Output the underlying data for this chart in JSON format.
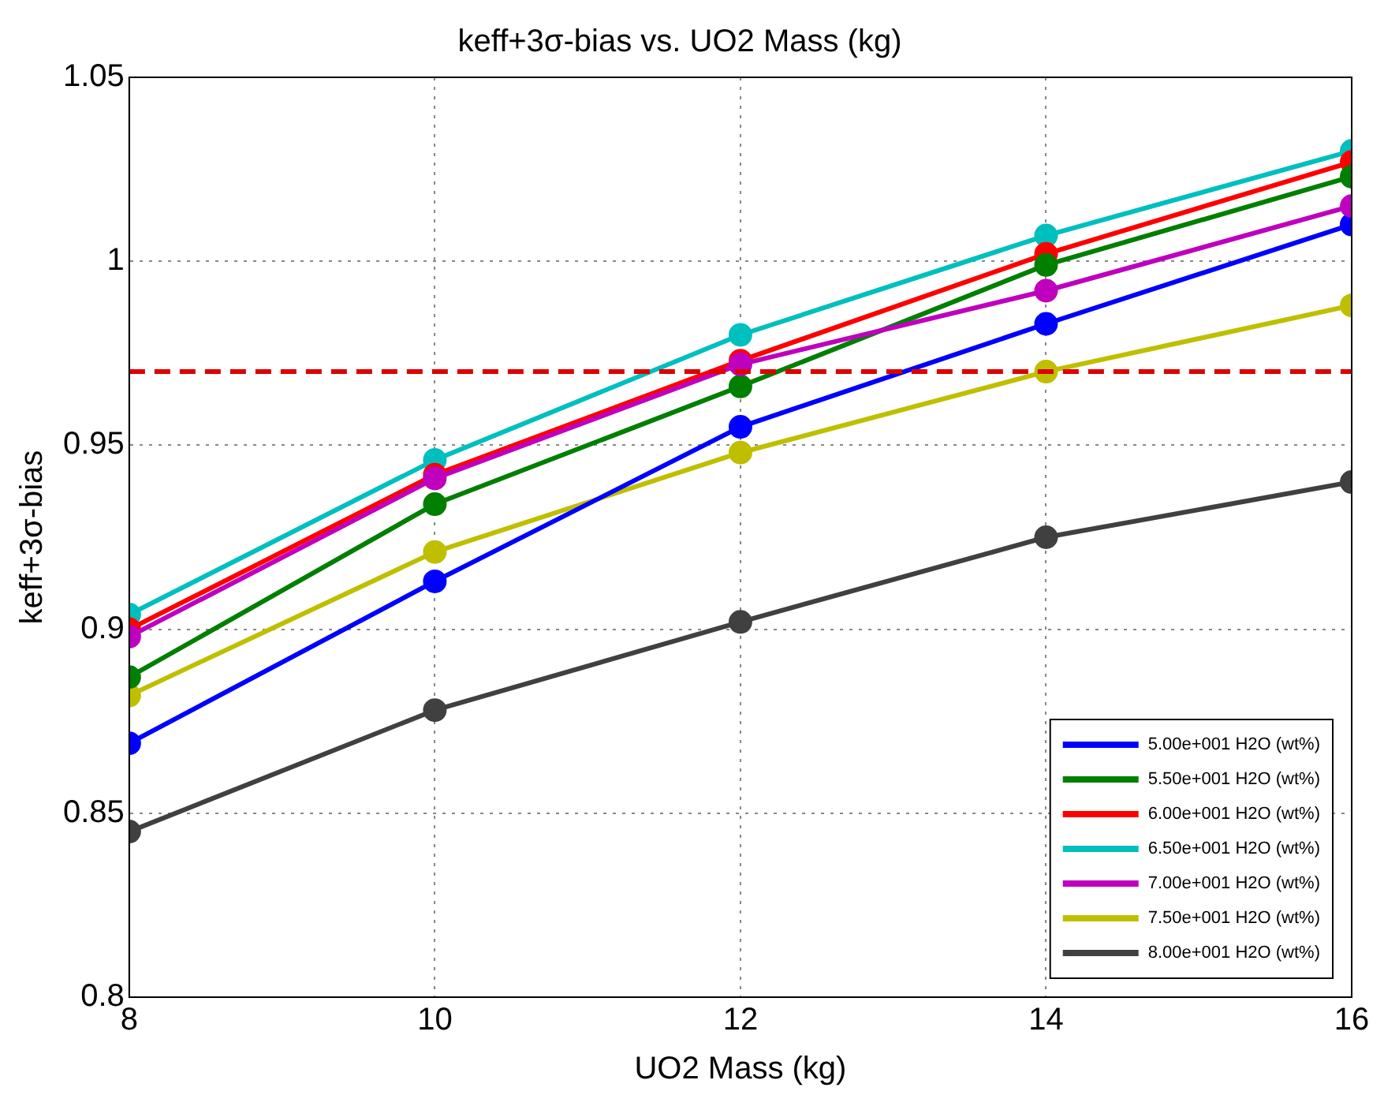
{
  "chart_data": {
    "type": "line",
    "title": "keff+3σ-bias vs. UO2 Mass (kg)",
    "xlabel": "UO2 Mass (kg)",
    "ylabel": "keff+3σ-bias",
    "x": [
      8,
      10,
      12,
      14,
      16
    ],
    "xlim": [
      8,
      16
    ],
    "xticks": [
      8,
      10,
      12,
      14,
      16
    ],
    "ylim": [
      0.8,
      1.05
    ],
    "yticks": [
      0.8,
      0.85,
      0.9,
      0.95,
      1,
      1.05
    ],
    "grid": true,
    "legend": "bottom right",
    "marker": "circle",
    "line_style": "solid",
    "series": [
      {
        "name": "5.00e+001 H2O (wt%)",
        "color": "#0000ff",
        "values": [
          0.869,
          0.913,
          0.955,
          0.983,
          1.01
        ]
      },
      {
        "name": "5.50e+001 H2O (wt%)",
        "color": "#007f00",
        "values": [
          0.887,
          0.934,
          0.966,
          0.999,
          1.023
        ]
      },
      {
        "name": "6.00e+001 H2O (wt%)",
        "color": "#ff0000",
        "values": [
          0.9,
          0.942,
          0.973,
          1.002,
          1.027
        ]
      },
      {
        "name": "6.50e+001 H2O (wt%)",
        "color": "#00bfbf",
        "values": [
          0.904,
          0.946,
          0.98,
          1.007,
          1.03
        ]
      },
      {
        "name": "7.00e+001 H2O (wt%)",
        "color": "#bf00bf",
        "values": [
          0.898,
          0.941,
          0.972,
          0.992,
          1.015
        ]
      },
      {
        "name": "7.50e+001 H2O (wt%)",
        "color": "#bfbf00",
        "values": [
          0.882,
          0.921,
          0.948,
          0.97,
          0.988
        ]
      },
      {
        "name": "8.00e+001 H2O (wt%)",
        "color": "#404040",
        "values": [
          0.845,
          0.878,
          0.902,
          0.925,
          0.94
        ]
      }
    ],
    "ref_lines": [
      {
        "axis": "y",
        "value": 0.97,
        "color": "#dd0000",
        "line_style": "dashed"
      }
    ]
  }
}
